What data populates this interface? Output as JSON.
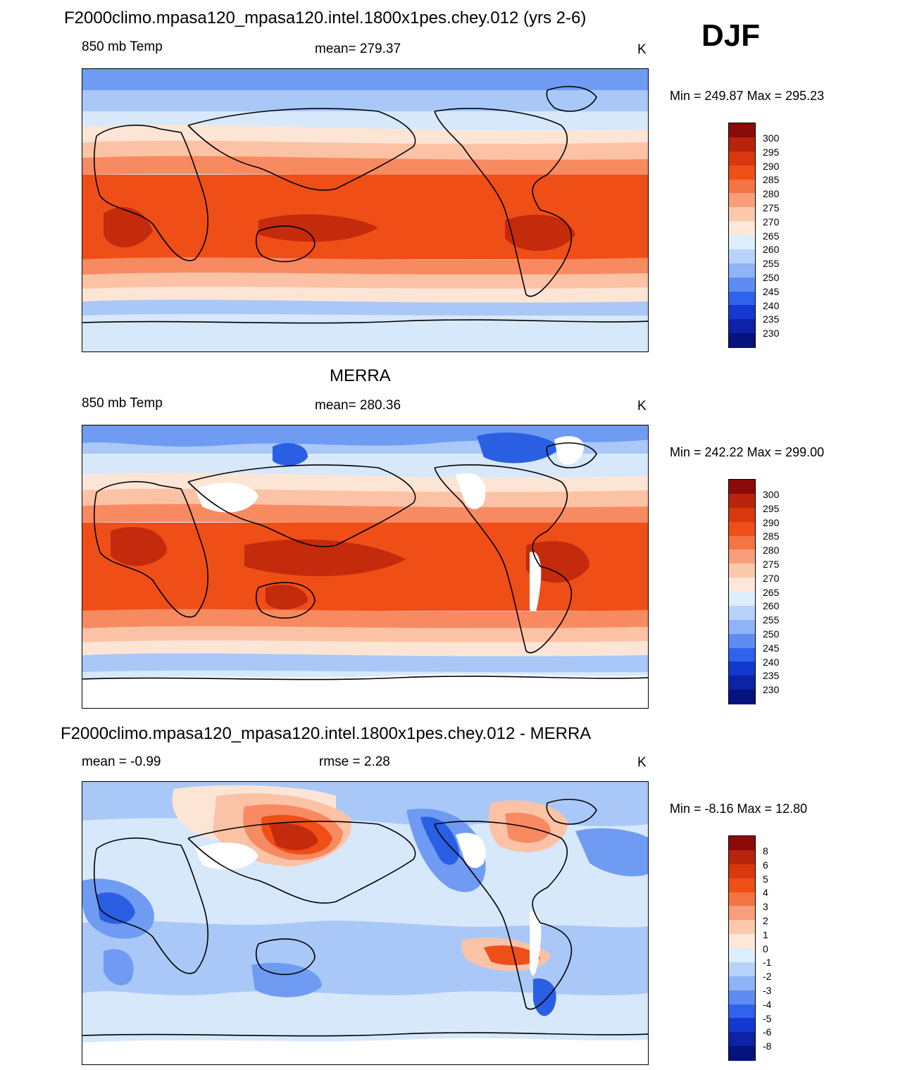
{
  "season": "DJF",
  "panels": [
    {
      "title": "F2000climo.mpasa120_mpasa120.intel.1800x1pes.chey.012 (yrs 2-6)",
      "left": "850 mb Temp",
      "center": "mean= 279.37",
      "right": "K",
      "minmax": "Min = 249.87 Max = 295.23",
      "colorbar_labels": [
        "300",
        "295",
        "290",
        "285",
        "280",
        "275",
        "270",
        "265",
        "260",
        "255",
        "250",
        "245",
        "240",
        "235",
        "230"
      ]
    },
    {
      "title": "MERRA",
      "left": "850 mb Temp",
      "center": "mean= 280.36",
      "right": "K",
      "minmax": "Min = 242.22 Max = 299.00",
      "colorbar_labels": [
        "300",
        "295",
        "290",
        "285",
        "280",
        "275",
        "270",
        "265",
        "260",
        "255",
        "250",
        "245",
        "240",
        "235",
        "230"
      ]
    },
    {
      "title": "F2000climo.mpasa120_mpasa120.intel.1800x1pes.chey.012 - MERRA",
      "left": "mean =  -0.99",
      "center": "rmse =   2.28",
      "right": "K",
      "minmax": "Min =  -8.16 Max =  12.80",
      "colorbar_labels": [
        "8",
        "6",
        "5",
        "4",
        "3",
        "2",
        "1",
        "0",
        "-1",
        "-2",
        "-3",
        "-4",
        "-5",
        "-6",
        "-8"
      ]
    }
  ],
  "colorbar_colors": [
    "#8b0a0a",
    "#b8240b",
    "#d8380d",
    "#f04e17",
    "#f47445",
    "#f89e7c",
    "#fcc9ad",
    "#fde8da",
    "#ddeefc",
    "#b7d3fb",
    "#8fb3f7",
    "#5e8cf2",
    "#2f63ee",
    "#1339d0",
    "#0c23a8",
    "#06137e"
  ],
  "colors": {
    "warm_dark": "#c42a0c",
    "warm": "#ef4e17",
    "warm_light": "#f88a62",
    "warm_pale": "#fcc2a5",
    "cream": "#fde5d6",
    "cool_pale": "#d7e8fb",
    "cool_light": "#a9c8f7",
    "cool": "#6f9bf2",
    "cool_dark": "#2a5fe4",
    "coast": "#000000",
    "missing": "#ffffff"
  }
}
